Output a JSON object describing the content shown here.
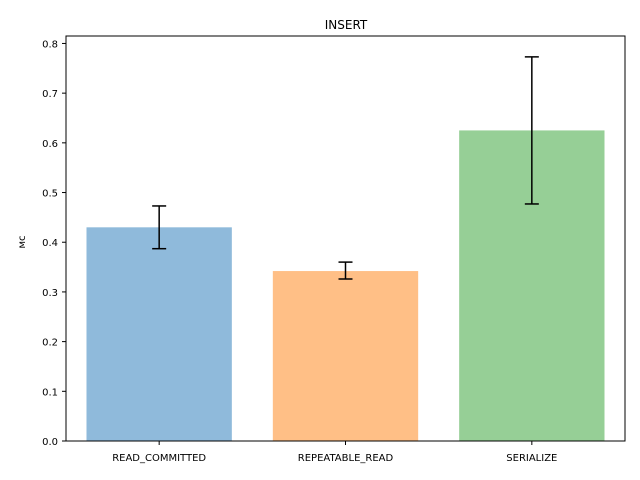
{
  "chart_data": {
    "type": "bar",
    "title": "INSERT",
    "xlabel": "",
    "ylabel": "мс",
    "categories": [
      "READ_COMMITTED",
      "REPEATABLE_READ",
      "SERIALIZE"
    ],
    "values": [
      0.43,
      0.342,
      0.625
    ],
    "errors": [
      {
        "low": 0.387,
        "high": 0.473
      },
      {
        "low": 0.326,
        "high": 0.36
      },
      {
        "low": 0.477,
        "high": 0.773
      }
    ],
    "colors": [
      "#8fbadb",
      "#ffbf86",
      "#96cf96"
    ],
    "ylim": [
      0,
      0.815
    ],
    "yticks": [
      "0.0",
      "0.1",
      "0.2",
      "0.3",
      "0.4",
      "0.5",
      "0.6",
      "0.7",
      "0.8"
    ],
    "grid": false,
    "legend": "none"
  }
}
